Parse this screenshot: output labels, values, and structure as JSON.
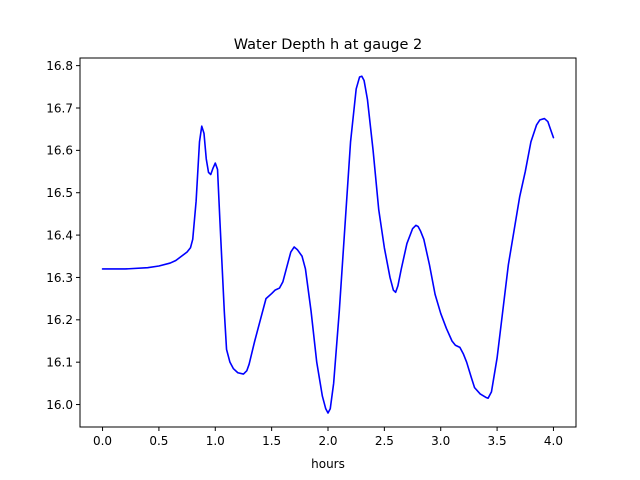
{
  "chart_data": {
    "type": "line",
    "title": "Water Depth h at gauge 2",
    "xlabel": "hours",
    "ylabel": "",
    "xlim": [
      -0.2,
      4.2
    ],
    "ylim": [
      15.947,
      16.818
    ],
    "grid": false,
    "x_ticks": [
      {
        "value": 0.0,
        "label": "0.0"
      },
      {
        "value": 0.5,
        "label": "0.5"
      },
      {
        "value": 1.0,
        "label": "1.0"
      },
      {
        "value": 1.5,
        "label": "1.5"
      },
      {
        "value": 2.0,
        "label": "2.0"
      },
      {
        "value": 2.5,
        "label": "2.5"
      },
      {
        "value": 3.0,
        "label": "3.0"
      },
      {
        "value": 3.5,
        "label": "3.5"
      },
      {
        "value": 4.0,
        "label": "4.0"
      }
    ],
    "y_ticks": [
      {
        "value": 16.0,
        "label": "16.0"
      },
      {
        "value": 16.1,
        "label": "16.1"
      },
      {
        "value": 16.2,
        "label": "16.2"
      },
      {
        "value": 16.3,
        "label": "16.3"
      },
      {
        "value": 16.4,
        "label": "16.4"
      },
      {
        "value": 16.5,
        "label": "16.5"
      },
      {
        "value": 16.6,
        "label": "16.6"
      },
      {
        "value": 16.7,
        "label": "16.7"
      },
      {
        "value": 16.8,
        "label": "16.8"
      }
    ],
    "series": [
      {
        "color": "#0000ff",
        "x": [
          0.0,
          0.2,
          0.4,
          0.5,
          0.6,
          0.65,
          0.7,
          0.75,
          0.78,
          0.8,
          0.83,
          0.86,
          0.88,
          0.9,
          0.92,
          0.94,
          0.96,
          0.98,
          1.0,
          1.02,
          1.04,
          1.06,
          1.08,
          1.1,
          1.13,
          1.16,
          1.2,
          1.25,
          1.28,
          1.3,
          1.35,
          1.4,
          1.45,
          1.5,
          1.53,
          1.57,
          1.6,
          1.63,
          1.67,
          1.7,
          1.73,
          1.77,
          1.8,
          1.85,
          1.9,
          1.95,
          1.98,
          2.0,
          2.02,
          2.05,
          2.1,
          2.15,
          2.2,
          2.25,
          2.28,
          2.3,
          2.32,
          2.35,
          2.4,
          2.45,
          2.5,
          2.55,
          2.58,
          2.6,
          2.62,
          2.65,
          2.7,
          2.75,
          2.78,
          2.8,
          2.82,
          2.85,
          2.9,
          2.95,
          3.0,
          3.05,
          3.1,
          3.13,
          3.17,
          3.2,
          3.23,
          3.27,
          3.3,
          3.35,
          3.4,
          3.42,
          3.45,
          3.5,
          3.55,
          3.6,
          3.65,
          3.7,
          3.75,
          3.8,
          3.85,
          3.88,
          3.92,
          3.95,
          3.98,
          4.0
        ],
        "y": [
          16.32,
          16.32,
          16.323,
          16.327,
          16.334,
          16.34,
          16.35,
          16.36,
          16.37,
          16.39,
          16.48,
          16.62,
          16.657,
          16.64,
          16.58,
          16.548,
          16.543,
          16.558,
          16.57,
          16.555,
          16.44,
          16.33,
          16.22,
          16.13,
          16.1,
          16.085,
          16.075,
          16.072,
          16.08,
          16.095,
          16.15,
          16.2,
          16.25,
          16.262,
          16.27,
          16.275,
          16.29,
          16.32,
          16.36,
          16.372,
          16.365,
          16.35,
          16.32,
          16.22,
          16.1,
          16.02,
          15.99,
          15.98,
          15.99,
          16.05,
          16.22,
          16.42,
          16.62,
          16.745,
          16.773,
          16.775,
          16.765,
          16.72,
          16.6,
          16.46,
          16.37,
          16.3,
          16.27,
          16.265,
          16.28,
          16.32,
          16.38,
          16.415,
          16.423,
          16.42,
          16.41,
          16.39,
          16.33,
          16.26,
          16.215,
          16.18,
          16.15,
          16.14,
          16.135,
          16.12,
          16.1,
          16.065,
          16.04,
          16.025,
          16.017,
          16.015,
          16.03,
          16.11,
          16.22,
          16.33,
          16.41,
          16.49,
          16.55,
          16.62,
          16.66,
          16.672,
          16.675,
          16.668,
          16.645,
          16.63
        ]
      }
    ]
  }
}
